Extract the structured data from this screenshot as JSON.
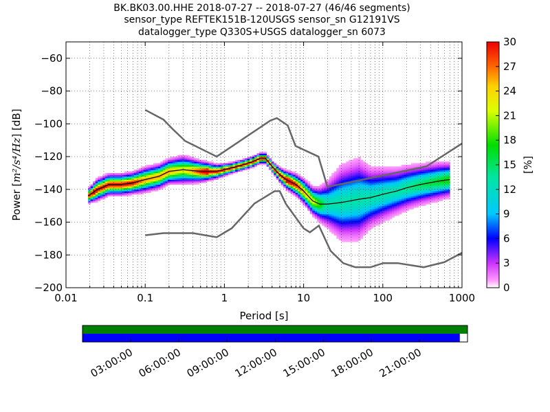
{
  "title_lines": [
    "BK.BK03.00.HHE   2018-07-27 -- 2018-07-27  (46/46 segments)",
    "sensor_type REFTEK151B-120USGS sensor_sn G12191VS",
    "datalogger_type Q330S+USGS datalogger_sn 6073"
  ],
  "chart_data": [
    {
      "type": "heatmap",
      "xlabel": "Period [s]",
      "ylabel_prefix": "Power [",
      "ylabel_units": "m²/s⁴/Hz",
      "ylabel_suffix": "] [dB]",
      "xscale": "log",
      "xlim": [
        0.01,
        1000
      ],
      "ylim": [
        -200,
        -50
      ],
      "x_ticks": [
        0.01,
        0.1,
        1,
        10,
        100,
        1000
      ],
      "x_tick_labels": [
        "0.01",
        "0.1",
        "1",
        "10",
        "100",
        "1000"
      ],
      "y_ticks": [
        -200,
        -180,
        -160,
        -140,
        -120,
        -100,
        -80,
        -60
      ],
      "y_tick_labels": [
        "−200",
        "−180",
        "−160",
        "−140",
        "−120",
        "−100",
        "−80",
        "−60"
      ],
      "grid": "dotted",
      "colorbar": {
        "label": "[%]",
        "range": [
          0,
          30
        ],
        "ticks": [
          0,
          3,
          6,
          9,
          12,
          15,
          18,
          21,
          24,
          27,
          30
        ],
        "tick_labels": [
          "0",
          "3",
          "6",
          "9",
          "12",
          "15",
          "18",
          "21",
          "24",
          "27",
          "30"
        ],
        "colormap": "pqlx"
      },
      "high_noise_model": {
        "color": "#666666",
        "x": [
          0.1,
          0.17,
          0.22,
          0.32,
          0.8,
          3.8,
          4.6,
          6.3,
          7.9,
          15.4,
          20,
          354.8,
          1000
        ],
        "y": [
          -91.5,
          -97.4,
          -103,
          -110.5,
          -120,
          -98,
          -96.5,
          -101,
          -113.5,
          -120,
          -138.5,
          -126,
          -112
        ]
      },
      "low_noise_model": {
        "color": "#666666",
        "x": [
          0.1,
          0.17,
          0.4,
          0.8,
          1.24,
          2.4,
          4.3,
          5,
          6,
          10,
          12,
          15.6,
          21.9,
          31.6,
          45,
          70,
          101,
          154,
          328,
          600,
          1000
        ],
        "y": [
          -168,
          -166.7,
          -166.7,
          -169.2,
          -163.7,
          -148.6,
          -141.1,
          -141.1,
          -149,
          -163.8,
          -166.2,
          -162.1,
          -177.5,
          -185,
          -187.5,
          -187.5,
          -185,
          -185,
          -187.5,
          -184.4,
          -178.7
        ]
      },
      "mean_curve": {
        "x": [
          0.019,
          0.025,
          0.035,
          0.05,
          0.07,
          0.1,
          0.15,
          0.2,
          0.3,
          0.5,
          0.8,
          1.2,
          1.7,
          2.3,
          2.8,
          3.3,
          4,
          5,
          6,
          8,
          10,
          13,
          16,
          20,
          30,
          50,
          70,
          100,
          150,
          200,
          300,
          500,
          700
        ],
        "y": [
          -144,
          -140,
          -137,
          -137,
          -136,
          -134,
          -132,
          -129,
          -128,
          -129,
          -129,
          -127,
          -125,
          -123,
          -121,
          -121,
          -126,
          -131,
          -134,
          -137,
          -141,
          -147,
          -149,
          -149,
          -148,
          -146,
          -145,
          -143,
          -141,
          -139,
          -137,
          -135,
          -134
        ]
      },
      "spread_width_db": [
        4,
        6,
        6,
        6,
        6,
        7,
        7,
        7,
        8,
        6,
        4,
        3,
        3,
        3,
        3,
        3,
        3,
        4,
        5,
        6,
        7,
        8,
        10,
        14,
        22,
        24,
        18,
        16,
        14,
        13,
        12,
        11,
        10
      ]
    },
    {
      "type": "timeline",
      "tick_labels": [
        "03:00:00",
        "06:00:00",
        "09:00:00",
        "12:00:00",
        "15:00:00",
        "18:00:00",
        "21:00:00"
      ],
      "tick_hours": [
        3,
        6,
        9,
        12,
        15,
        18,
        21
      ],
      "range_hours": [
        0,
        24
      ],
      "rows": [
        {
          "color": "#008000",
          "coverage": 1.0
        },
        {
          "color": "#0000ff",
          "coverage": 0.98
        }
      ]
    }
  ]
}
